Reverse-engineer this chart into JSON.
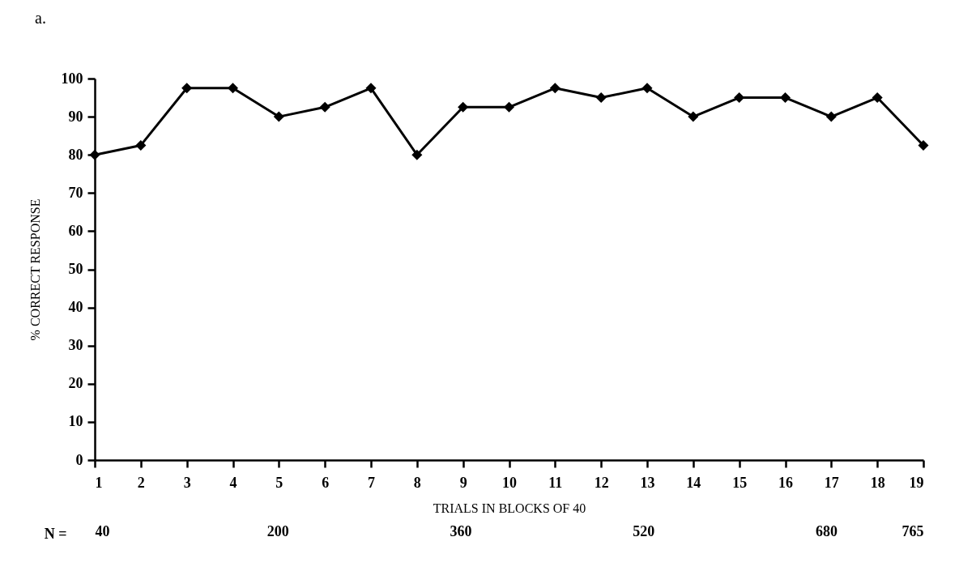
{
  "chart_data": {
    "type": "line",
    "title": "a.",
    "xlabel": "TRIALS IN BLOCKS OF 40",
    "ylabel": "% CORRECT RESPONSE",
    "x": [
      1,
      2,
      3,
      4,
      5,
      6,
      7,
      8,
      9,
      10,
      11,
      12,
      13,
      14,
      15,
      16,
      17,
      18,
      19
    ],
    "series": [
      {
        "color": "#000000",
        "values": [
          80,
          82.5,
          97.5,
          97.5,
          90,
          92.5,
          97.5,
          80,
          92.5,
          92.5,
          97.5,
          95,
          97.5,
          90,
          95,
          95,
          90,
          95,
          82.5
        ]
      }
    ],
    "xlim": [
      1,
      19
    ],
    "xticks": [
      1,
      2,
      3,
      4,
      5,
      6,
      7,
      8,
      9,
      10,
      11,
      12,
      13,
      14,
      15,
      16,
      17,
      18,
      19
    ],
    "ylim": [
      0,
      100
    ],
    "yticks": [
      0,
      10,
      20,
      30,
      40,
      50,
      60,
      70,
      80,
      90,
      100
    ],
    "x2label": "N =",
    "x2lim": [
      40,
      765
    ],
    "x2ticks": [
      40,
      200,
      360,
      520,
      680,
      765
    ],
    "grid": false,
    "marker": "diamond",
    "line_style": "solid"
  }
}
